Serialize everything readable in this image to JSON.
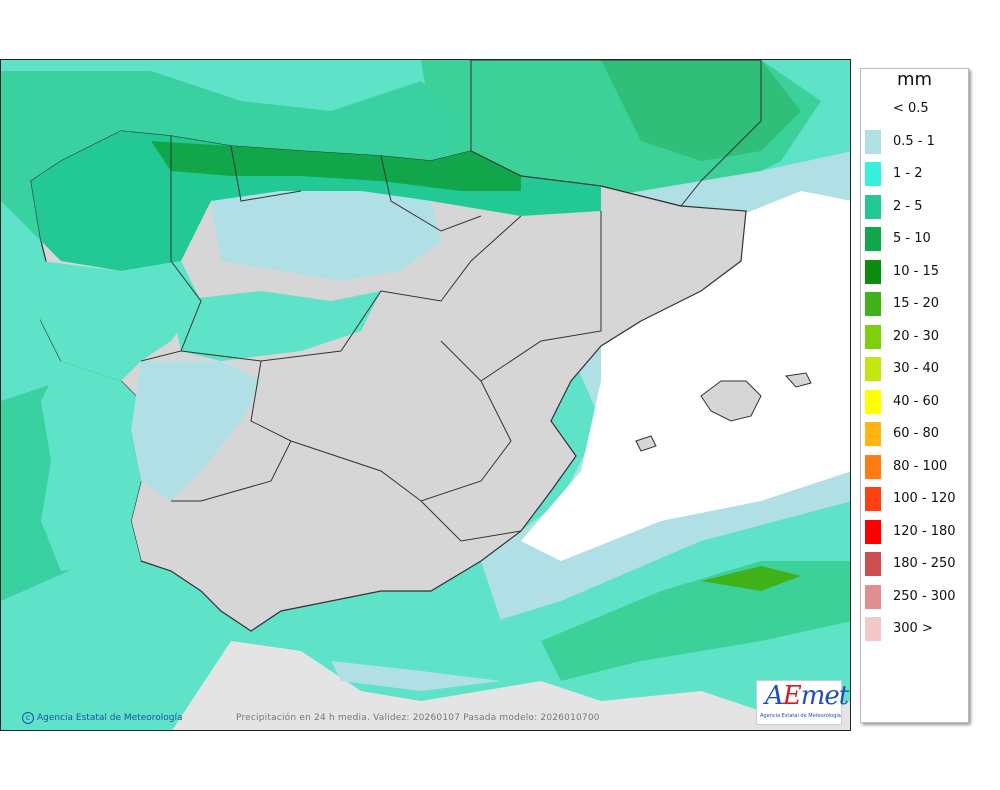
{
  "map": {
    "unit": "mm",
    "credit": "Agencia Estatal de Meteorología",
    "caption": "Precipitación en 24 h media. Validez: 20260107 Pasada modelo: 2026010700"
  },
  "logo": {
    "mark_a": "A",
    "mark_e": "E",
    "mark_rest": "met",
    "subtitle": "Agencia Estatal de Meteorología"
  },
  "legend": {
    "items": [
      {
        "label": "< 0.5",
        "color": "#ffffff"
      },
      {
        "label": "0.5 - 1",
        "color": "#b0e0e6"
      },
      {
        "label": "1 - 2",
        "color": "#35f2dc"
      },
      {
        "label": "2 - 5",
        "color": "#22c994"
      },
      {
        "label": "5 - 10",
        "color": "#11a64a"
      },
      {
        "label": "10 - 15",
        "color": "#0b8c0b"
      },
      {
        "label": "15 - 20",
        "color": "#3fb21a"
      },
      {
        "label": "20 - 30",
        "color": "#7fcf0e"
      },
      {
        "label": "30 - 40",
        "color": "#c3e60e"
      },
      {
        "label": "40 - 60",
        "color": "#ffff00"
      },
      {
        "label": "60 - 80",
        "color": "#ffb612"
      },
      {
        "label": "80 - 100",
        "color": "#ff7c12"
      },
      {
        "label": "100 - 120",
        "color": "#ff4012"
      },
      {
        "label": "120 - 180",
        "color": "#ff0000"
      },
      {
        "label": "180 - 250",
        "color": "#cd5050"
      },
      {
        "label": "250 - 300",
        "color": "#e09090"
      },
      {
        "label": "300 >",
        "color": "#f2c8c8"
      }
    ]
  }
}
